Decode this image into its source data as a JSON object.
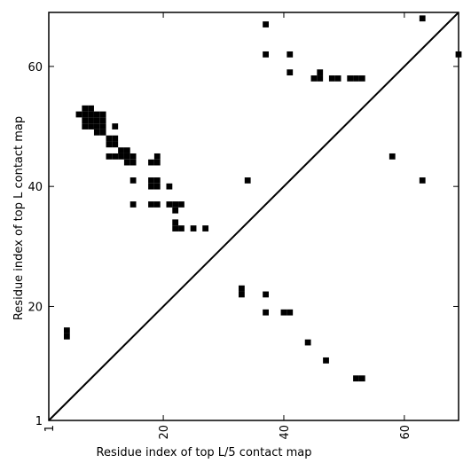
{
  "chart_data": {
    "type": "heatmap",
    "title": "",
    "xlabel": "Residue index of top L/5 contact map",
    "ylabel": "Residue index of top L contact map",
    "xlim": [
      1,
      69
    ],
    "ylim": [
      1,
      69
    ],
    "x_ticks": [
      {
        "value": 1,
        "label": "1"
      },
      {
        "value": 20,
        "label": "20"
      },
      {
        "value": 40,
        "label": "40"
      },
      {
        "value": 60,
        "label": "60"
      }
    ],
    "y_ticks": [
      {
        "value": 1,
        "label": "1"
      },
      {
        "value": 20,
        "label": "20"
      },
      {
        "value": 40,
        "label": "40"
      },
      {
        "value": 60,
        "label": "60"
      }
    ],
    "x_tick_rotation": -90,
    "grid": false,
    "legend": "none",
    "diagonal": {
      "from": [
        1,
        1
      ],
      "to": [
        69,
        69
      ]
    },
    "colors": {
      "contact": "#000000",
      "background": "#ffffff",
      "axis": "#000000"
    },
    "contacts": [
      [
        4,
        15
      ],
      [
        4,
        16
      ],
      [
        6,
        52
      ],
      [
        7,
        50
      ],
      [
        7,
        51
      ],
      [
        7,
        52
      ],
      [
        7,
        53
      ],
      [
        8,
        50
      ],
      [
        8,
        51
      ],
      [
        8,
        52
      ],
      [
        8,
        53
      ],
      [
        9,
        49
      ],
      [
        9,
        50
      ],
      [
        9,
        51
      ],
      [
        9,
        52
      ],
      [
        10,
        49
      ],
      [
        10,
        50
      ],
      [
        10,
        51
      ],
      [
        10,
        52
      ],
      [
        11,
        45
      ],
      [
        11,
        47
      ],
      [
        11,
        48
      ],
      [
        12,
        45
      ],
      [
        12,
        47
      ],
      [
        12,
        48
      ],
      [
        12,
        50
      ],
      [
        13,
        45
      ],
      [
        13,
        46
      ],
      [
        14,
        44
      ],
      [
        14,
        45
      ],
      [
        14,
        46
      ],
      [
        15,
        37
      ],
      [
        15,
        41
      ],
      [
        15,
        44
      ],
      [
        15,
        45
      ],
      [
        18,
        37
      ],
      [
        18,
        40
      ],
      [
        18,
        41
      ],
      [
        18,
        44
      ],
      [
        19,
        37
      ],
      [
        19,
        40
      ],
      [
        19,
        41
      ],
      [
        19,
        44
      ],
      [
        19,
        45
      ],
      [
        21,
        37
      ],
      [
        21,
        40
      ],
      [
        22,
        33
      ],
      [
        22,
        34
      ],
      [
        22,
        36
      ],
      [
        22,
        37
      ],
      [
        23,
        33
      ],
      [
        23,
        37
      ],
      [
        25,
        33
      ],
      [
        27,
        33
      ],
      [
        33,
        22
      ],
      [
        33,
        23
      ],
      [
        34,
        41
      ],
      [
        37,
        19
      ],
      [
        37,
        22
      ],
      [
        37,
        62
      ],
      [
        37,
        67
      ],
      [
        40,
        19
      ],
      [
        41,
        19
      ],
      [
        41,
        59
      ],
      [
        41,
        62
      ],
      [
        44,
        14
      ],
      [
        45,
        58
      ],
      [
        46,
        58
      ],
      [
        46,
        59
      ],
      [
        47,
        11
      ],
      [
        48,
        58
      ],
      [
        49,
        58
      ],
      [
        51,
        58
      ],
      [
        52,
        8
      ],
      [
        52,
        58
      ],
      [
        53,
        8
      ],
      [
        53,
        58
      ],
      [
        58,
        45
      ],
      [
        63,
        41
      ],
      [
        63,
        68
      ],
      [
        69,
        62
      ]
    ]
  }
}
